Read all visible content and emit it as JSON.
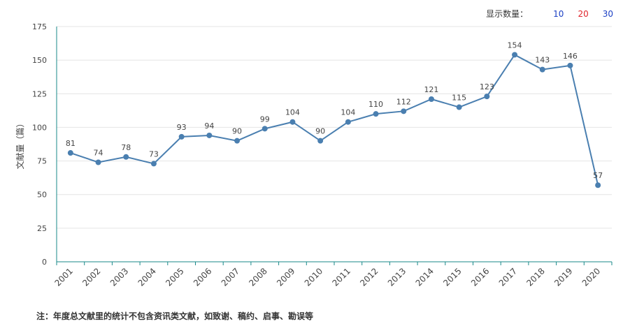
{
  "display": {
    "label": "显示数量：",
    "options": [
      "10",
      "20",
      "30"
    ]
  },
  "note": "注：年度总文献里的统计不包含资讯类文献，如致谢、稿约、启事、勘误等",
  "colors": {
    "line": "#4a7fb0",
    "axis": "#1a8a8a",
    "grid": "#e4e4e4"
  },
  "chart_data": {
    "type": "line",
    "ylabel": "文献量（篇）",
    "ylim": [
      0,
      175
    ],
    "yticks": [
      0,
      25,
      50,
      75,
      100,
      125,
      150,
      175
    ],
    "grid": true,
    "categories": [
      "2001",
      "2002",
      "2003",
      "2004",
      "2005",
      "2006",
      "2007",
      "2008",
      "2009",
      "2010",
      "2011",
      "2012",
      "2013",
      "2014",
      "2015",
      "2016",
      "2017",
      "2018",
      "2019",
      "2020"
    ],
    "values": [
      81,
      74,
      78,
      73,
      93,
      94,
      90,
      99,
      104,
      90,
      104,
      110,
      112,
      121,
      115,
      123,
      154,
      143,
      146,
      57
    ]
  }
}
